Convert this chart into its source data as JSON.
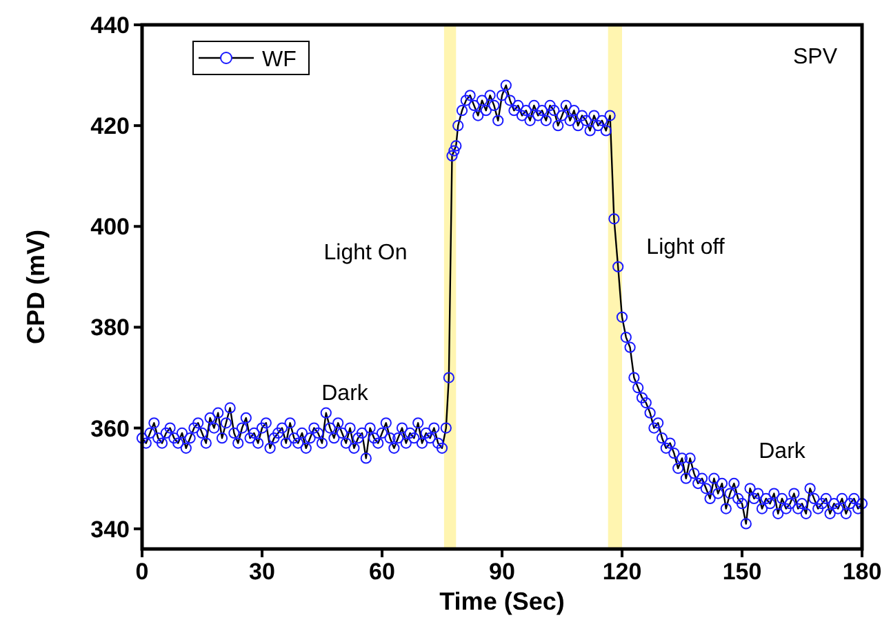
{
  "chart_data": {
    "type": "line",
    "xlabel": "Time (Sec)",
    "ylabel": "CPD (mV)",
    "xlim": [
      0,
      180
    ],
    "ylim": [
      336,
      440
    ],
    "xticks": [
      0,
      30,
      60,
      90,
      120,
      150,
      180
    ],
    "yticks": [
      340,
      360,
      380,
      400,
      420,
      440
    ],
    "marker": "circle",
    "legend": "top left",
    "grid": false,
    "series": [
      {
        "name": "WF",
        "color": "#1a1aff",
        "x": [
          0,
          1,
          2,
          3,
          4,
          5,
          6,
          7,
          8,
          9,
          10,
          11,
          12,
          13,
          14,
          15,
          16,
          17,
          18,
          19,
          20,
          21,
          22,
          23,
          24,
          25,
          26,
          27,
          28,
          29,
          30,
          31,
          32,
          33,
          34,
          35,
          36,
          37,
          38,
          39,
          40,
          41,
          42,
          43,
          44,
          45,
          46,
          47,
          48,
          49,
          50,
          51,
          52,
          53,
          54,
          55,
          56,
          57,
          58,
          59,
          60,
          61,
          62,
          63,
          64,
          65,
          66,
          67,
          68,
          69,
          70,
          71,
          72,
          73,
          74,
          75,
          76,
          76.7,
          77.5,
          78,
          78.5,
          79,
          80,
          81,
          82,
          83,
          84,
          85,
          86,
          87,
          88,
          89,
          90,
          91,
          92,
          93,
          94,
          95,
          96,
          97,
          98,
          99,
          100,
          101,
          102,
          103,
          104,
          105,
          106,
          107,
          108,
          109,
          110,
          111,
          112,
          113,
          114,
          115,
          116,
          117,
          118,
          119,
          120,
          121,
          122,
          123,
          124,
          125,
          126,
          127,
          128,
          129,
          130,
          131,
          132,
          133,
          134,
          135,
          136,
          137,
          138,
          139,
          140,
          141,
          142,
          143,
          144,
          145,
          146,
          147,
          148,
          149,
          150,
          151,
          152,
          153,
          154,
          155,
          156,
          157,
          158,
          159,
          160,
          161,
          162,
          163,
          164,
          165,
          166,
          167,
          168,
          169,
          170,
          171,
          172,
          173,
          174,
          175,
          176,
          177,
          178,
          179,
          180
        ],
        "values": [
          358,
          357,
          359,
          361,
          358,
          357,
          359,
          360,
          358,
          357,
          359,
          356,
          358,
          360,
          361,
          359,
          357,
          362,
          360,
          363,
          358,
          361,
          364,
          359,
          357,
          360,
          362,
          358,
          359,
          357,
          360,
          361,
          356,
          358,
          359,
          360,
          357,
          361,
          358,
          357,
          359,
          356,
          358,
          360,
          359,
          357,
          363,
          360,
          358,
          361,
          359,
          357,
          360,
          356,
          358,
          359,
          354,
          360,
          358,
          357,
          359,
          361,
          358,
          356,
          358,
          360,
          357,
          359,
          358,
          361,
          357,
          359,
          358,
          360,
          357,
          356,
          360,
          370,
          414,
          415,
          416,
          420,
          423,
          425,
          426,
          424,
          422,
          425,
          423,
          426,
          424,
          421,
          426,
          428,
          425,
          423,
          424,
          422,
          423,
          421,
          424,
          422,
          423,
          421,
          424,
          423,
          420,
          422,
          424,
          421,
          423,
          420,
          422,
          421,
          419,
          422,
          420,
          421,
          419,
          422,
          401.5,
          392,
          382,
          378,
          376,
          370,
          368,
          366,
          365,
          363,
          360,
          361,
          358,
          356,
          357,
          355,
          352,
          354,
          350,
          354,
          351,
          349,
          350,
          348,
          346,
          350,
          347,
          349,
          344,
          347,
          349,
          346,
          345,
          341,
          348,
          346,
          347,
          344,
          346,
          345,
          347,
          343,
          346,
          344,
          345,
          347,
          344,
          345,
          343,
          348,
          346,
          344,
          345,
          346,
          343,
          345,
          344,
          346,
          343,
          345,
          346,
          344,
          345
        ]
      }
    ],
    "bands": [
      {
        "axis": "x",
        "from": 75.5,
        "to": 78.5,
        "color": "#fff5b0"
      },
      {
        "axis": "x",
        "from": 116.5,
        "to": 120,
        "color": "#fff5b0"
      }
    ],
    "annotations": [
      "Light On",
      "Light off",
      "Dark",
      "Dark",
      "SPV"
    ]
  }
}
